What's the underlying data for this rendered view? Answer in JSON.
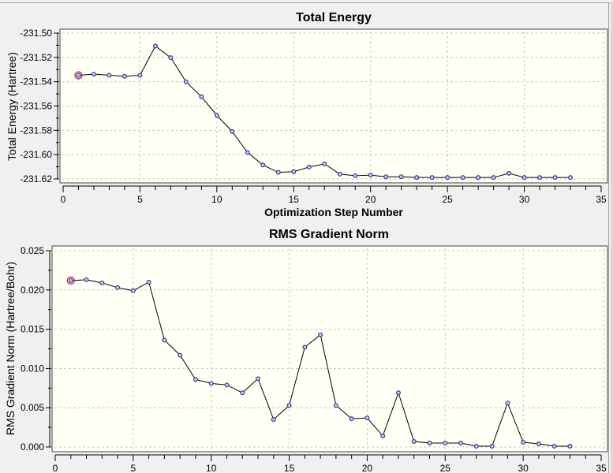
{
  "chart_data": [
    {
      "type": "line",
      "title": "Total Energy",
      "xlabel": "Optimization Step Number",
      "ylabel": "Total Energy (Hartree)",
      "xlim": [
        0,
        35
      ],
      "ylim": [
        -231.62,
        -231.5
      ],
      "xticks": [
        "0",
        "5",
        "10",
        "15",
        "20",
        "25",
        "30",
        "35"
      ],
      "yticks": [
        "-231.50",
        "-231.52",
        "-231.54",
        "-231.56",
        "-231.58",
        "-231.60",
        "-231.62"
      ],
      "grid": true,
      "x": [
        1,
        2,
        3,
        4,
        5,
        6,
        7,
        8,
        9,
        10,
        11,
        12,
        13,
        14,
        15,
        16,
        17,
        18,
        19,
        20,
        21,
        22,
        23,
        24,
        25,
        26,
        27,
        28,
        29,
        30,
        31,
        32,
        33
      ],
      "values": [
        -231.5347,
        -231.5338,
        -231.5346,
        -231.5355,
        -231.5347,
        -231.5107,
        -231.5202,
        -231.5401,
        -231.5524,
        -231.5677,
        -231.581,
        -231.5983,
        -231.6085,
        -231.6146,
        -231.614,
        -231.6102,
        -231.6076,
        -231.616,
        -231.6173,
        -231.6168,
        -231.6182,
        -231.6182,
        -231.6188,
        -231.6188,
        -231.6188,
        -231.6188,
        -231.6188,
        -231.6188,
        -231.6154,
        -231.6188,
        -231.6188,
        -231.6188,
        -231.6188
      ],
      "highlighted_point": 1,
      "line_color": "#000000",
      "marker_color": "#3a3aa0",
      "highlight_color": "#b02050",
      "plot_bg": "#fffff5"
    },
    {
      "type": "line",
      "title": "RMS Gradient Norm",
      "xlabel": "",
      "ylabel": "RMS Gradient Norm (Hartree/Bohr)",
      "xlim": [
        0,
        35
      ],
      "ylim": [
        0.0,
        0.025
      ],
      "xticks": [
        "0",
        "5",
        "10",
        "15",
        "20",
        "25",
        "30",
        "35"
      ],
      "yticks": [
        "0.025",
        "0.020",
        "0.015",
        "0.010",
        "0.005",
        "0.000"
      ],
      "grid": true,
      "x": [
        1,
        2,
        3,
        4,
        5,
        6,
        7,
        8,
        9,
        10,
        11,
        12,
        13,
        14,
        15,
        16,
        17,
        18,
        19,
        20,
        21,
        22,
        23,
        24,
        25,
        26,
        27,
        28,
        29,
        30,
        31,
        32,
        33
      ],
      "values": [
        0.0212,
        0.0213,
        0.0209,
        0.0203,
        0.0199,
        0.021,
        0.0136,
        0.0117,
        0.0086,
        0.0081,
        0.0079,
        0.0069,
        0.0087,
        0.0035,
        0.0053,
        0.0127,
        0.0143,
        0.0053,
        0.0036,
        0.0037,
        0.0014,
        0.0069,
        0.0007,
        0.0005,
        0.0005,
        0.0005,
        0.0001,
        0.0001,
        0.0056,
        0.0006,
        0.0004,
        0.0001,
        0.0001
      ],
      "highlighted_point": 1,
      "line_color": "#000000",
      "marker_color": "#3a3aa0",
      "highlight_color": "#b02050",
      "plot_bg": "#fffff5"
    }
  ]
}
